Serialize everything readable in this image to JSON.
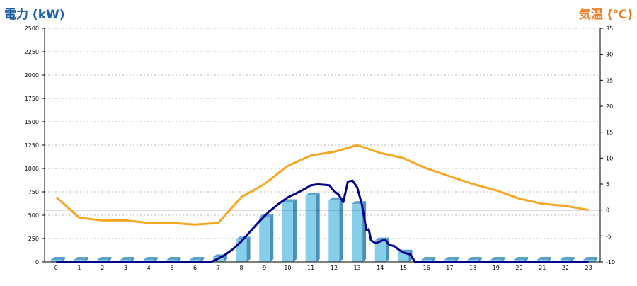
{
  "chart_data": {
    "type": "bar",
    "left_axis": {
      "label": "電力 (kW)",
      "color": "#1a5fa8",
      "ylim": [
        0,
        2500
      ],
      "ticks": [
        0,
        250,
        500,
        750,
        1000,
        1250,
        1500,
        1750,
        2000,
        2250,
        2500
      ]
    },
    "right_axis": {
      "label": "気温 (℃)",
      "color": "#f07c22",
      "ylim": [
        -10,
        35
      ],
      "ticks": [
        -10,
        -5,
        0,
        5,
        10,
        15,
        20,
        25,
        30,
        35
      ]
    },
    "categories": [
      "0",
      "1",
      "2",
      "3",
      "4",
      "5",
      "6",
      "7",
      "8",
      "9",
      "10",
      "11",
      "12",
      "13",
      "14",
      "15",
      "16",
      "17",
      "18",
      "19",
      "20",
      "21",
      "22",
      "23"
    ],
    "grid": true,
    "bar_color": "#87ceeb",
    "bar_series": {
      "values": [
        0,
        0,
        0,
        0,
        0,
        0,
        0,
        50,
        240,
        480,
        640,
        710,
        660,
        620,
        230,
        100,
        0,
        0,
        0,
        0,
        0,
        0,
        0,
        0
      ]
    },
    "power_line": {
      "color": "#00008b",
      "x": [
        0,
        1,
        2,
        3,
        4,
        5,
        6,
        6.7,
        7.2,
        7.6,
        8,
        8.4,
        8.8,
        9.2,
        9.6,
        10,
        10.5,
        10.8,
        11,
        11.3,
        11.6,
        11.8,
        12,
        12.2,
        12.4,
        12.6,
        12.8,
        13,
        13.2,
        13.4,
        13.5,
        13.6,
        13.8,
        14,
        14.2,
        14.4,
        14.6,
        14.8,
        15,
        15.3,
        15.5,
        16,
        17,
        18,
        19,
        20,
        21,
        22,
        23
      ],
      "values": [
        0,
        0,
        0,
        0,
        0,
        0,
        0,
        0,
        60,
        130,
        220,
        330,
        440,
        540,
        620,
        690,
        750,
        790,
        820,
        830,
        825,
        820,
        760,
        720,
        640,
        860,
        870,
        800,
        620,
        340,
        350,
        230,
        200,
        220,
        240,
        180,
        170,
        130,
        100,
        80,
        0,
        0,
        0,
        0,
        0,
        0,
        0,
        0,
        0
      ]
    },
    "temperature_series": {
      "color": "#f5a623",
      "values": [
        2.5,
        -1.5,
        -2.0,
        -2.0,
        -2.5,
        -2.5,
        -2.8,
        -2.5,
        2.5,
        5.0,
        8.5,
        10.5,
        11.2,
        12.5,
        11.0,
        10.0,
        8.0,
        6.5,
        5.0,
        3.8,
        2.2,
        1.2,
        0.8,
        0.0
      ]
    },
    "reference_line": {
      "axis": "right",
      "value": 0
    }
  }
}
